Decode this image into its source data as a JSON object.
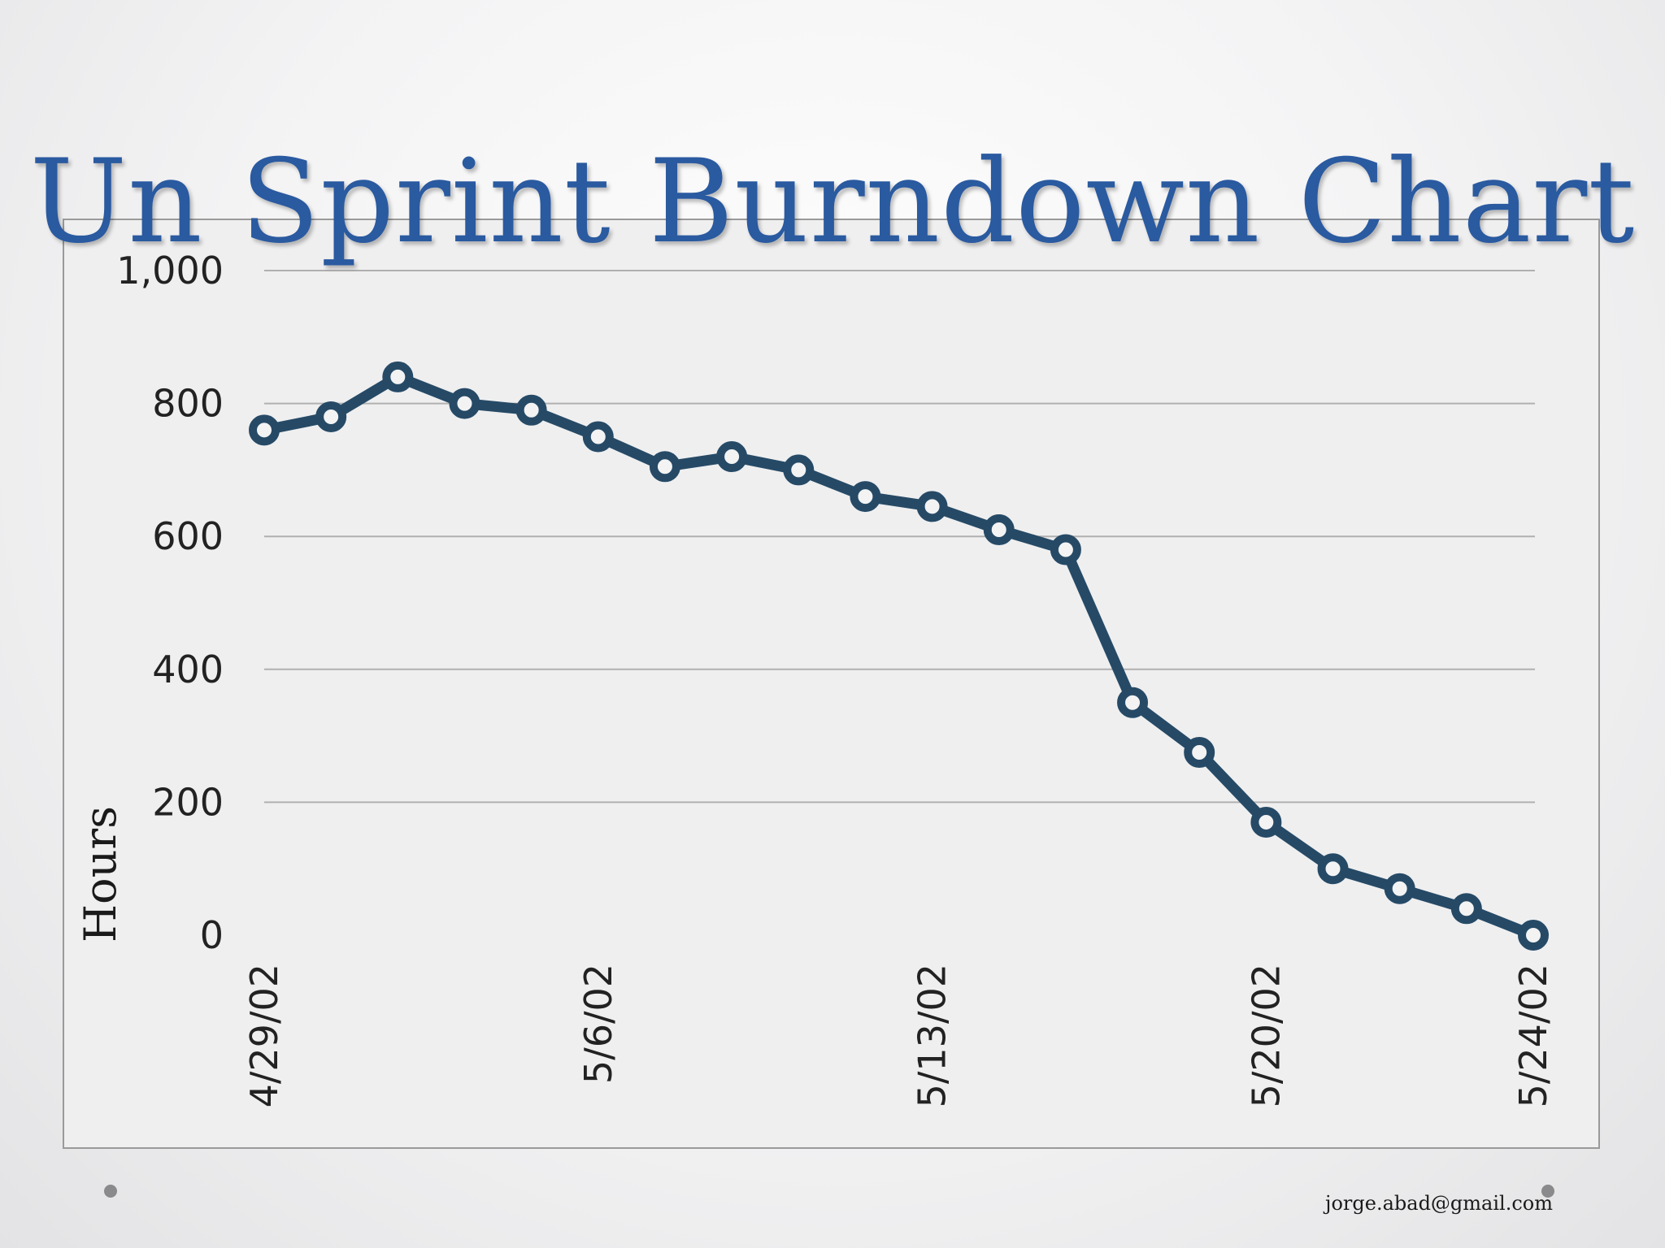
{
  "slide": {
    "title": "Un Sprint Burndown Chart",
    "footer_email": "jorge.abad@gmail.com"
  },
  "colors": {
    "title": "#2a5aa0",
    "line": "#264a66",
    "marker_fill": "#f3f3f4",
    "gridline": "#b0b0b0"
  },
  "chart_data": {
    "type": "line",
    "title": "Un Sprint Burndown Chart",
    "ylabel": "Hours",
    "xlabel": "",
    "ylim": [
      0,
      1000
    ],
    "yticks": [
      0,
      200,
      400,
      600,
      800,
      1000
    ],
    "ytick_labels": [
      "0",
      "200",
      "400",
      "600",
      "800",
      "1,000"
    ],
    "x_ticks": [
      "4/29/02",
      "5/6/02",
      "5/13/02",
      "5/20/02",
      "5/24/02"
    ],
    "grid": true,
    "legend": "none",
    "x": [
      "4/29/02",
      "4/30/02",
      "5/1/02",
      "5/2/02",
      "5/3/02",
      "5/6/02",
      "5/7/02",
      "5/8/02",
      "5/9/02",
      "5/10/02",
      "5/13/02",
      "5/14/02",
      "5/15/02",
      "5/16/02",
      "5/17/02",
      "5/20/02",
      "5/21/02",
      "5/22/02",
      "5/23/02",
      "5/24/02"
    ],
    "series": [
      {
        "values": [
          760,
          780,
          840,
          800,
          790,
          750,
          705,
          720,
          700,
          660,
          645,
          610,
          580,
          350,
          275,
          170,
          100,
          70,
          40,
          0
        ]
      }
    ]
  }
}
